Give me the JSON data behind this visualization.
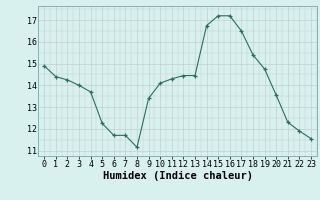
{
  "x": [
    0,
    1,
    2,
    3,
    4,
    5,
    6,
    7,
    8,
    9,
    10,
    11,
    12,
    13,
    14,
    15,
    16,
    17,
    18,
    19,
    20,
    21,
    22,
    23
  ],
  "y": [
    14.9,
    14.4,
    14.25,
    14.0,
    13.7,
    12.25,
    11.7,
    11.7,
    11.15,
    13.4,
    14.1,
    14.3,
    14.45,
    14.45,
    16.75,
    17.2,
    17.2,
    16.5,
    15.4,
    14.75,
    13.55,
    12.3,
    11.9,
    11.55
  ],
  "line_color": "#2d6e5e",
  "marker": "+",
  "marker_size": 3,
  "marker_color": "#2d6e5e",
  "bg_color": "#d8f0ee",
  "grid_color": "#c0d0d0",
  "xlabel": "Humidex (Indice chaleur)",
  "xlabel_fontsize": 7.5,
  "tick_fontsize": 6,
  "xlim": [
    -0.5,
    23.5
  ],
  "ylim": [
    10.75,
    17.65
  ],
  "yticks": [
    11,
    12,
    13,
    14,
    15,
    16,
    17
  ],
  "xticks": [
    0,
    1,
    2,
    3,
    4,
    5,
    6,
    7,
    8,
    9,
    10,
    11,
    12,
    13,
    14,
    15,
    16,
    17,
    18,
    19,
    20,
    21,
    22,
    23
  ]
}
